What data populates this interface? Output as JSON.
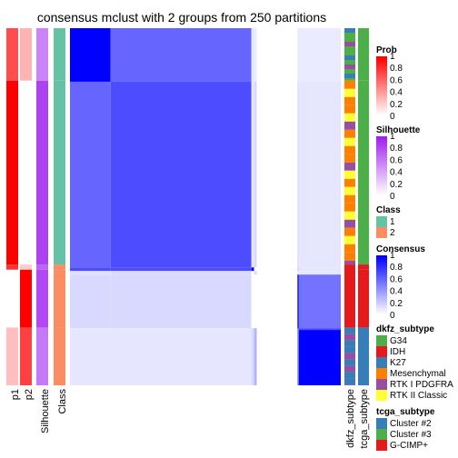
{
  "chart_data": {
    "type": "heatmap",
    "title": "consensus mclust with 2 groups from 250 partitions",
    "column_labels": [
      "p1",
      "p2",
      "Silhouette",
      "Class"
    ],
    "annotation_labels": [
      "dkfz_subtype",
      "tcga_subtype"
    ],
    "class_colors": {
      "1": "#66C2A5",
      "2": "#FC8D62"
    },
    "dkfz_colors": {
      "G34": "#4DAF4A",
      "IDH": "#E41A1C",
      "K27": "#377EB8",
      "Mesenchymal": "#FF7F00",
      "RTK I PDGFRA": "#984EA3",
      "RTK II Classic": "#FFFF33"
    },
    "tcga_colors": {
      "Cluster #2": "#377EB8",
      "Cluster #3": "#4DAF4A",
      "G-CIMP+": "#E41A1C"
    },
    "blocks": [
      {
        "rows": 20,
        "p1": 0.7,
        "p2": 0.3,
        "silhouette": 0.55,
        "class": "1",
        "tcga": "Cluster #3"
      },
      {
        "rows": 70,
        "p1": 1.0,
        "p2": 0.0,
        "silhouette": 0.85,
        "class": "1",
        "tcga": "Cluster #3"
      },
      {
        "rows": 2,
        "p1": 0.8,
        "p2": 0.2,
        "silhouette": 0.7,
        "class": "2",
        "tcga": "G-CIMP+"
      },
      {
        "rows": 22,
        "p1": 0.0,
        "p2": 1.0,
        "silhouette": 0.82,
        "class": "2",
        "tcga": "G-CIMP+"
      },
      {
        "rows": 22,
        "p1": 0.25,
        "p2": 0.75,
        "silhouette": 0.6,
        "class": "2",
        "tcga": "Cluster #2"
      }
    ],
    "consensus_matrix": [
      [
        1.0,
        0.6,
        0.1,
        0.08,
        0.0,
        0.1,
        0.08
      ],
      [
        0.6,
        0.7,
        0.1,
        0.15,
        0.0,
        0.15,
        0.1
      ],
      [
        0.7,
        0.7,
        1.0,
        0.0,
        0.0,
        0.2,
        0.1
      ],
      [
        0.12,
        0.14,
        0.0,
        0.15,
        0.0,
        0.1,
        0.1
      ],
      [
        0.15,
        0.15,
        0.0,
        0.0,
        0.0,
        1.0,
        0.55
      ],
      [
        0.1,
        0.1,
        0.15,
        0.3,
        0.0,
        0.65,
        0.7
      ],
      [
        0.1,
        0.1,
        0.15,
        0.3,
        0.0,
        0.55,
        1.0
      ]
    ],
    "legends": [
      {
        "title": "Prob",
        "type": "gradient",
        "from": "#FFFFFF",
        "to": "#FF0000",
        "ticks": [
          "1",
          "0.8",
          "0.6",
          "0.4",
          "0.2",
          "0"
        ]
      },
      {
        "title": "Silhouette",
        "type": "gradient",
        "from": "#FFFFFF",
        "to": "#A020F0",
        "ticks": [
          "1",
          "0.8",
          "0.6",
          "0.4",
          "0.2",
          "0"
        ]
      },
      {
        "title": "Class",
        "type": "discrete",
        "items": [
          {
            "label": "1",
            "color": "#66C2A5"
          },
          {
            "label": "2",
            "color": "#FC8D62"
          }
        ]
      },
      {
        "title": "Consensus",
        "type": "gradient",
        "from": "#FFFFFF",
        "to": "#0000FF",
        "ticks": [
          "1",
          "0.8",
          "0.6",
          "0.4",
          "0.2",
          "0"
        ]
      },
      {
        "title": "dkfz_subtype",
        "type": "discrete",
        "items": [
          {
            "label": "G34",
            "color": "#4DAF4A"
          },
          {
            "label": "IDH",
            "color": "#E41A1C"
          },
          {
            "label": "K27",
            "color": "#377EB8"
          },
          {
            "label": "Mesenchymal",
            "color": "#FF7F00"
          },
          {
            "label": "RTK I PDGFRA",
            "color": "#984EA3"
          },
          {
            "label": "RTK II Classic",
            "color": "#FFFF33"
          }
        ]
      },
      {
        "title": "tcga_subtype",
        "type": "discrete",
        "items": [
          {
            "label": "Cluster #2",
            "color": "#377EB8"
          },
          {
            "label": "Cluster #3",
            "color": "#4DAF4A"
          },
          {
            "label": "G-CIMP+",
            "color": "#E41A1C"
          }
        ]
      }
    ]
  }
}
